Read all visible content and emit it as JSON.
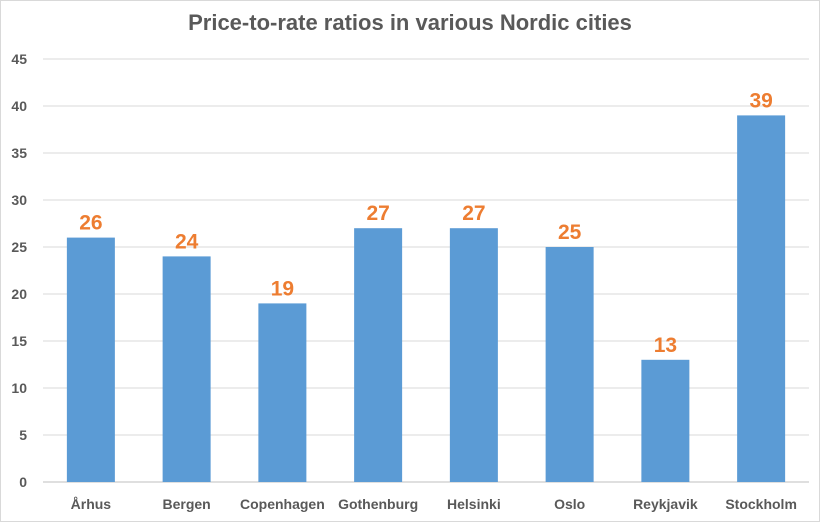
{
  "chart_data": {
    "type": "bar",
    "title": "Price-to-rate ratios in various Nordic cities",
    "xlabel": "",
    "ylabel": "",
    "categories": [
      "Århus",
      "Bergen",
      "Copenhagen",
      "Gothenburg",
      "Helsinki",
      "Oslo",
      "Reykjavik",
      "Stockholm"
    ],
    "values": [
      26,
      24,
      19,
      27,
      27,
      25,
      13,
      39
    ],
    "ylim": [
      0,
      45
    ],
    "y_ticks": [
      0,
      5,
      10,
      15,
      20,
      25,
      30,
      35,
      40,
      45
    ],
    "grid": true,
    "legend": "none",
    "data_labels": true,
    "bar_color": "#5b9bd5",
    "label_color": "#ed7d31"
  }
}
